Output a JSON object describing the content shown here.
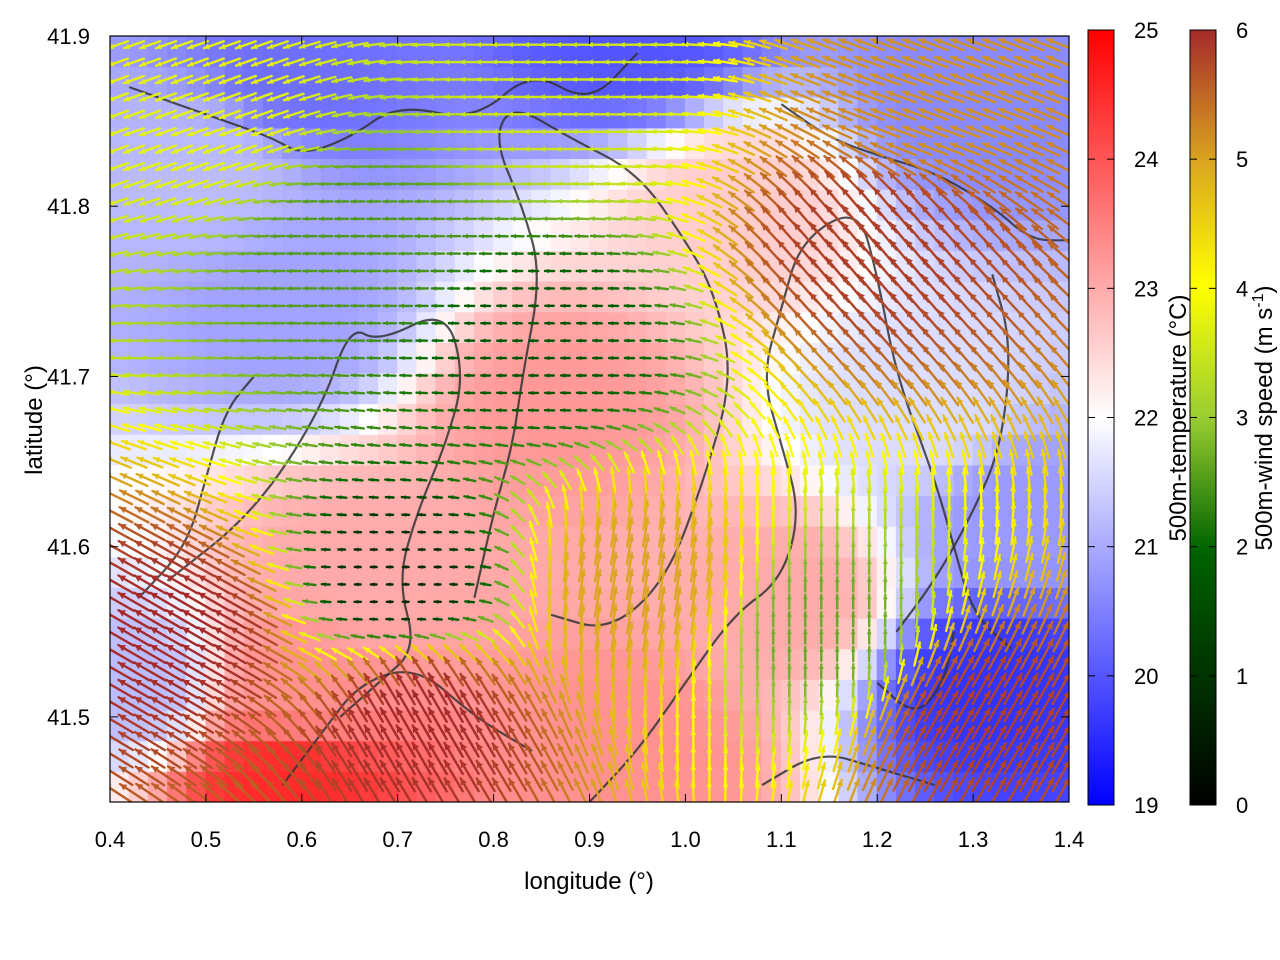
{
  "chart_data": {
    "type": "heatmap",
    "subtype": "temperature field with wind-speed vector overlay and terrain contours",
    "xlabel": "longitude (°)",
    "ylabel": "latitude (°)",
    "xlim": [
      0.4,
      1.4
    ],
    "ylim": [
      41.45,
      41.9
    ],
    "x_ticks": [
      "0.4",
      "0.5",
      "0.6",
      "0.7",
      "0.8",
      "0.9",
      "1.0",
      "1.1",
      "1.2",
      "1.3",
      "1.4"
    ],
    "y_ticks": [
      "41.5",
      "41.6",
      "41.7",
      "41.8",
      "41.9"
    ],
    "grid": false,
    "colorbars": [
      {
        "label": "500m-temperature (°C)",
        "range": [
          19,
          25
        ],
        "ticks": [
          "19",
          "20",
          "21",
          "22",
          "23",
          "24",
          "25"
        ],
        "colors": [
          "#0000ff",
          "#ffffff",
          "#ff0000"
        ]
      },
      {
        "label_main": "500m-wind speed (m s",
        "label_sup": "-1",
        "label_end": ")",
        "range": [
          0,
          6
        ],
        "ticks": [
          "0",
          "1",
          "2",
          "3",
          "4",
          "5",
          "6"
        ],
        "colors": [
          "#000000",
          "#006400",
          "#9acd32",
          "#ffff00",
          "#daa520",
          "#a52a2a"
        ]
      }
    ],
    "temperature_features": [
      {
        "lon": 0.87,
        "lat": 41.68,
        "value": 23.2
      },
      {
        "lon": 0.66,
        "lat": 41.58,
        "value": 23.0
      },
      {
        "lon": 1.1,
        "lat": 41.57,
        "value": 23.0
      },
      {
        "lon": 0.6,
        "lat": 41.52,
        "value": 23.3
      },
      {
        "lon": 0.58,
        "lat": 41.46,
        "value": 24.5
      },
      {
        "lon": 0.95,
        "lat": 41.48,
        "value": 23.3
      },
      {
        "lon": 1.05,
        "lat": 41.8,
        "value": 22.6
      },
      {
        "lon": 0.5,
        "lat": 41.82,
        "value": 21.2
      },
      {
        "lon": 0.58,
        "lat": 41.74,
        "value": 20.9
      },
      {
        "lon": 0.42,
        "lat": 41.52,
        "value": 21.2
      },
      {
        "lon": 0.6,
        "lat": 41.88,
        "value": 20.3
      },
      {
        "lon": 0.95,
        "lat": 41.9,
        "value": 20.0
      },
      {
        "lon": 1.32,
        "lat": 41.52,
        "value": 19.6
      },
      {
        "lon": 1.35,
        "lat": 41.62,
        "value": 20.8
      },
      {
        "lon": 1.3,
        "lat": 41.86,
        "value": 20.6
      },
      {
        "lon": 1.25,
        "lat": 41.68,
        "value": 21.6
      }
    ],
    "wind_features": [
      {
        "lon": 0.5,
        "lat": 41.85,
        "speed": 3.3,
        "dir_deg": 200
      },
      {
        "lon": 0.48,
        "lat": 41.55,
        "speed": 6.0,
        "dir_deg": 150
      },
      {
        "lon": 0.72,
        "lat": 41.5,
        "speed": 6.0,
        "dir_deg": 120
      },
      {
        "lon": 0.85,
        "lat": 41.72,
        "speed": 1.0,
        "dir_deg": 180
      },
      {
        "lon": 0.7,
        "lat": 41.58,
        "speed": 0.5,
        "dir_deg": 180
      },
      {
        "lon": 1.2,
        "lat": 41.78,
        "speed": 5.8,
        "dir_deg": 130
      },
      {
        "lon": 1.15,
        "lat": 41.55,
        "speed": 2.0,
        "dir_deg": 90
      },
      {
        "lon": 0.95,
        "lat": 41.58,
        "speed": 4.8,
        "dir_deg": 80
      },
      {
        "lon": 1.25,
        "lat": 41.86,
        "speed": 5.0,
        "dir_deg": 160
      },
      {
        "lon": 0.88,
        "lat": 41.87,
        "speed": 3.0,
        "dir_deg": 180
      },
      {
        "lon": 1.3,
        "lat": 41.5,
        "speed": 5.8,
        "dir_deg": 60
      },
      {
        "lon": 0.65,
        "lat": 41.78,
        "speed": 1.8,
        "dir_deg": 180
      }
    ]
  }
}
